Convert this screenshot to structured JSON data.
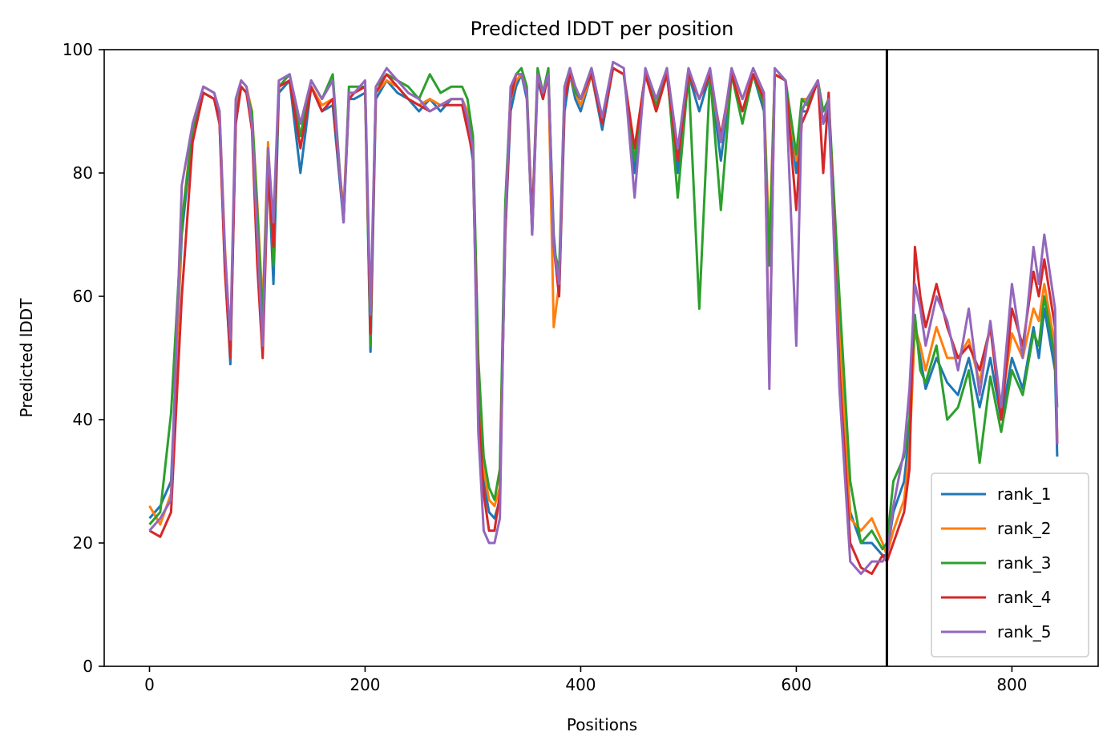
{
  "chart_data": {
    "type": "line",
    "title": "Predicted lDDT per position",
    "xlabel": "Positions",
    "ylabel": "Predicted lDDT",
    "xlim": [
      -42,
      880
    ],
    "ylim": [
      0,
      100
    ],
    "xticks": [
      0,
      200,
      400,
      600,
      800
    ],
    "yticks": [
      0,
      20,
      40,
      60,
      80,
      100
    ],
    "xtick_labels": [
      "0",
      "200",
      "400",
      "600",
      "800"
    ],
    "ytick_labels": [
      "0",
      "20",
      "40",
      "60",
      "80",
      "100"
    ],
    "grid": false,
    "legend_position": "bottom-right",
    "vertical_line": {
      "x": 684,
      "color": "#000000"
    },
    "x": [
      0,
      10,
      20,
      30,
      40,
      50,
      60,
      65,
      70,
      75,
      80,
      85,
      90,
      95,
      100,
      105,
      110,
      115,
      120,
      130,
      140,
      150,
      160,
      170,
      180,
      185,
      190,
      200,
      205,
      210,
      220,
      230,
      240,
      250,
      260,
      270,
      280,
      290,
      295,
      300,
      305,
      310,
      315,
      320,
      325,
      330,
      335,
      340,
      345,
      350,
      355,
      360,
      365,
      370,
      375,
      380,
      385,
      390,
      395,
      400,
      410,
      420,
      430,
      440,
      450,
      460,
      470,
      480,
      490,
      500,
      510,
      520,
      530,
      540,
      550,
      560,
      570,
      575,
      580,
      590,
      600,
      605,
      610,
      620,
      625,
      630,
      640,
      650,
      660,
      670,
      680,
      684,
      690,
      700,
      705,
      710,
      715,
      720,
      730,
      740,
      750,
      760,
      770,
      780,
      790,
      800,
      810,
      820,
      825,
      830,
      840,
      842
    ],
    "series": [
      {
        "name": "rank_1",
        "color": "#1f77b4",
        "values": [
          24,
          26,
          30,
          70,
          87,
          93,
          92,
          88,
          65,
          49,
          88,
          94,
          93,
          88,
          72,
          55,
          82,
          62,
          93,
          95,
          80,
          94,
          90,
          91,
          72,
          92,
          92,
          93,
          51,
          92,
          95,
          93,
          92,
          90,
          92,
          90,
          92,
          92,
          88,
          82,
          45,
          30,
          25,
          24,
          27,
          70,
          90,
          94,
          96,
          92,
          70,
          95,
          92,
          96,
          70,
          60,
          90,
          96,
          92,
          90,
          96,
          87,
          97,
          96,
          80,
          96,
          90,
          96,
          80,
          96,
          90,
          96,
          82,
          96,
          90,
          96,
          90,
          65,
          96,
          95,
          80,
          90,
          90,
          95,
          88,
          90,
          50,
          25,
          20,
          20,
          18,
          18,
          25,
          30,
          38,
          55,
          50,
          45,
          50,
          46,
          44,
          50,
          42,
          50,
          40,
          50,
          45,
          55,
          50,
          58,
          48,
          34
        ]
      },
      {
        "name": "rank_2",
        "color": "#ff7f0e",
        "values": [
          26,
          23,
          28,
          72,
          88,
          94,
          93,
          90,
          68,
          52,
          90,
          95,
          94,
          90,
          75,
          58,
          85,
          68,
          94,
          95,
          88,
          94,
          91,
          92,
          74,
          93,
          93,
          94,
          55,
          93,
          95,
          94,
          92,
          91,
          92,
          91,
          92,
          92,
          90,
          85,
          48,
          32,
          27,
          26,
          29,
          72,
          92,
          95,
          96,
          93,
          70,
          96,
          93,
          96,
          55,
          62,
          92,
          96,
          93,
          91,
          96,
          88,
          97,
          96,
          84,
          96,
          90,
          96,
          82,
          96,
          92,
          96,
          85,
          96,
          92,
          96,
          92,
          68,
          96,
          95,
          82,
          92,
          92,
          95,
          90,
          92,
          55,
          24,
          22,
          24,
          20,
          18,
          22,
          27,
          35,
          55,
          52,
          48,
          55,
          50,
          50,
          53,
          46,
          55,
          42,
          54,
          50,
          58,
          56,
          62,
          52,
          37
        ]
      },
      {
        "name": "rank_3",
        "color": "#2ca02c",
        "values": [
          23,
          25,
          41,
          72,
          87,
          93,
          92,
          89,
          66,
          51,
          89,
          94,
          93,
          90,
          74,
          56,
          84,
          65,
          94,
          96,
          86,
          95,
          92,
          96,
          72,
          94,
          94,
          94,
          52,
          94,
          96,
          95,
          94,
          92,
          96,
          93,
          94,
          94,
          92,
          86,
          50,
          34,
          29,
          27,
          32,
          75,
          93,
          96,
          97,
          94,
          72,
          97,
          93,
          97,
          68,
          64,
          94,
          97,
          93,
          92,
          97,
          89,
          97,
          96,
          82,
          96,
          91,
          97,
          76,
          96,
          58,
          96,
          74,
          96,
          88,
          96,
          91,
          65,
          96,
          95,
          83,
          92,
          91,
          95,
          90,
          92,
          60,
          30,
          20,
          22,
          19,
          20,
          30,
          34,
          40,
          57,
          48,
          46,
          52,
          40,
          42,
          48,
          33,
          47,
          38,
          48,
          44,
          54,
          52,
          60,
          50,
          42
        ]
      },
      {
        "name": "rank_4",
        "color": "#d62728",
        "values": [
          22,
          21,
          25,
          60,
          85,
          93,
          92,
          88,
          64,
          50,
          88,
          94,
          93,
          87,
          65,
          50,
          80,
          68,
          94,
          95,
          84,
          94,
          90,
          92,
          73,
          92,
          93,
          94,
          54,
          93,
          96,
          94,
          92,
          91,
          90,
          91,
          91,
          91,
          87,
          83,
          42,
          28,
          22,
          22,
          28,
          70,
          92,
          96,
          96,
          93,
          72,
          96,
          92,
          96,
          68,
          60,
          92,
          96,
          94,
          92,
          96,
          88,
          97,
          96,
          84,
          96,
          90,
          96,
          82,
          96,
          92,
          96,
          86,
          96,
          90,
          96,
          92,
          47,
          96,
          95,
          74,
          88,
          90,
          95,
          80,
          93,
          48,
          20,
          16,
          15,
          18,
          17,
          20,
          25,
          32,
          68,
          60,
          55,
          62,
          55,
          50,
          52,
          48,
          55,
          40,
          58,
          52,
          64,
          60,
          66,
          55,
          36
        ]
      },
      {
        "name": "rank_5",
        "color": "#9467bd",
        "values": [
          22,
          24,
          27,
          78,
          88,
          94,
          93,
          90,
          67,
          53,
          92,
          95,
          94,
          88,
          70,
          52,
          84,
          72,
          95,
          96,
          88,
          95,
          92,
          95,
          72,
          93,
          93,
          95,
          57,
          94,
          97,
          95,
          93,
          92,
          90,
          91,
          92,
          92,
          89,
          84,
          38,
          22,
          20,
          20,
          24,
          72,
          94,
          96,
          96,
          93,
          70,
          96,
          93,
          96,
          68,
          62,
          94,
          97,
          94,
          92,
          97,
          89,
          98,
          97,
          76,
          97,
          92,
          97,
          84,
          97,
          92,
          97,
          85,
          97,
          92,
          97,
          93,
          45,
          97,
          95,
          52,
          90,
          92,
          95,
          88,
          92,
          45,
          17,
          15,
          17,
          17,
          18,
          26,
          35,
          45,
          62,
          58,
          52,
          60,
          56,
          48,
          58,
          44,
          56,
          42,
          62,
          50,
          68,
          62,
          70,
          58,
          36
        ]
      }
    ]
  }
}
